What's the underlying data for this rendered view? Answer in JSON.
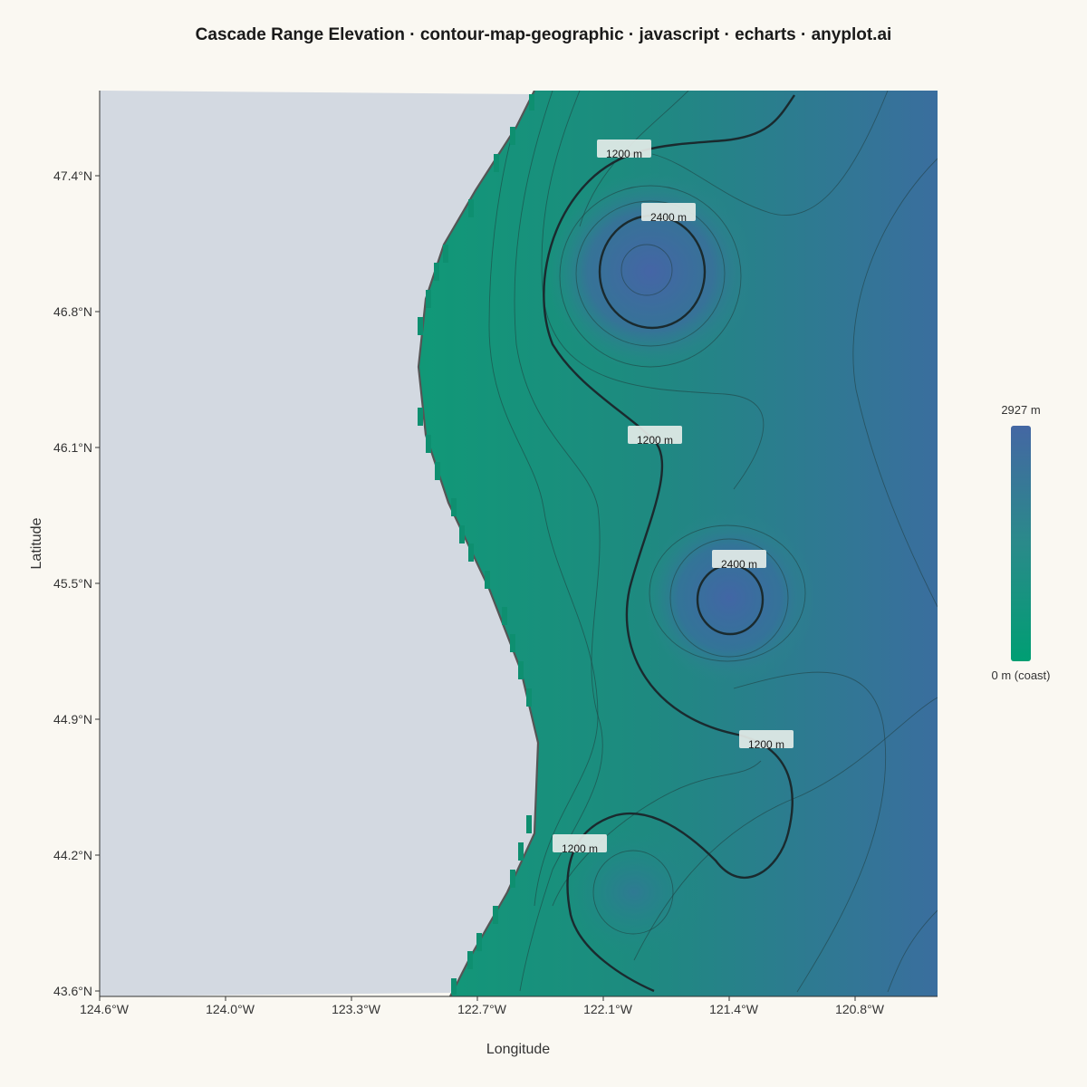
{
  "chart_data": {
    "type": "contour",
    "title": "Cascade Range Elevation · contour-map-geographic · javascript · echarts · anyplot.ai",
    "xlabel": "Longitude",
    "ylabel": "Latitude",
    "xlim": [
      -124.6,
      -120.4
    ],
    "ylim": [
      43.6,
      47.8
    ],
    "x_ticks": [
      {
        "value": -124.6,
        "label": "124.6°W"
      },
      {
        "value": -124.0,
        "label": "124.0°W"
      },
      {
        "value": -123.3,
        "label": "123.3°W"
      },
      {
        "value": -122.7,
        "label": "122.7°W"
      },
      {
        "value": -122.1,
        "label": "122.1°W"
      },
      {
        "value": -121.4,
        "label": "121.4°W"
      },
      {
        "value": -120.8,
        "label": "120.8°W"
      }
    ],
    "y_ticks": [
      {
        "value": 47.4,
        "label": "47.4°N"
      },
      {
        "value": 46.8,
        "label": "46.8°N"
      },
      {
        "value": 46.1,
        "label": "46.1°N"
      },
      {
        "value": 45.5,
        "label": "45.5°N"
      },
      {
        "value": 44.9,
        "label": "44.9°N"
      },
      {
        "value": 44.2,
        "label": "44.2°N"
      },
      {
        "value": 43.6,
        "label": "43.6°N"
      }
    ],
    "colorbar": {
      "max_label": "2927 m",
      "min_label": "0 m (coast)",
      "min": 0,
      "max": 2927,
      "colors": [
        "#009e73",
        "#2a8a8a",
        "#4467a3"
      ]
    },
    "contour_labels": [
      {
        "text": "1200 m",
        "lon": -122.0,
        "lat": 47.5
      },
      {
        "text": "2400 m",
        "lon": -121.8,
        "lat": 47.2
      },
      {
        "text": "1200 m",
        "lon": -121.85,
        "lat": 46.05
      },
      {
        "text": "2400 m",
        "lon": -121.45,
        "lat": 45.5
      },
      {
        "text": "1200 m",
        "lon": -121.3,
        "lat": 44.7
      },
      {
        "text": "1200 m",
        "lon": -122.2,
        "lat": 44.25
      }
    ]
  }
}
